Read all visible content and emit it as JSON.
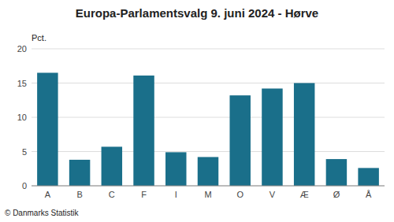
{
  "chart_data": {
    "type": "bar",
    "title": "Europa-Parlamentsvalg 9. juni 2024 - Hørve",
    "ylabel": "Pct.",
    "footer": "© Danmarks Statistik",
    "categories": [
      "A",
      "B",
      "C",
      "F",
      "I",
      "M",
      "O",
      "V",
      "Æ",
      "Ø",
      "Å"
    ],
    "values": [
      16.5,
      3.8,
      5.7,
      16.1,
      4.9,
      4.2,
      13.2,
      14.2,
      15.0,
      3.9,
      2.6
    ],
    "color": "#1a6f8a",
    "ylim": [
      0,
      20
    ],
    "yticks": [
      0,
      5,
      10,
      15,
      20
    ],
    "grid": true
  }
}
